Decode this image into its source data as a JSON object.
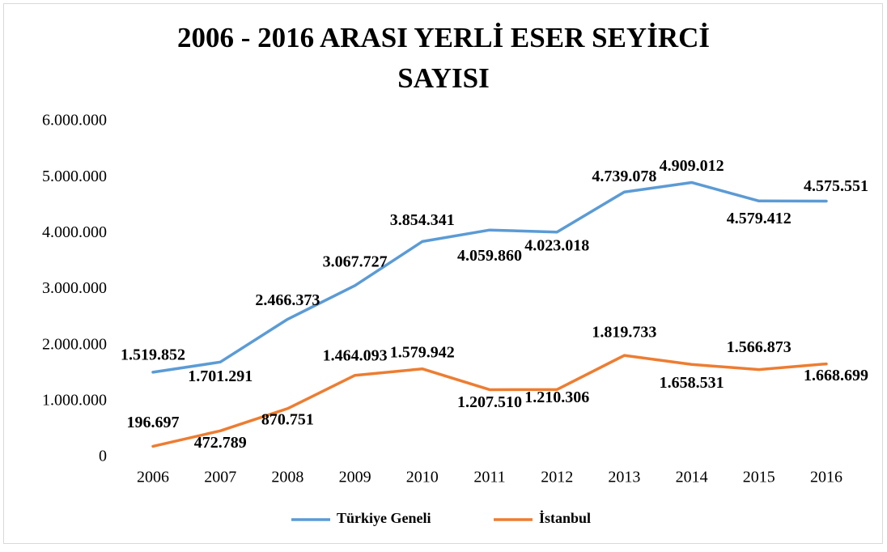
{
  "chart_data": {
    "type": "line",
    "title": "2006 - 2016 ARASI YERLİ ESER SEYİRCİ",
    "title_line2": "SAYISI",
    "categories": [
      "2006",
      "2007",
      "2008",
      "2009",
      "2010",
      "2011",
      "2012",
      "2013",
      "2014",
      "2015",
      "2016"
    ],
    "series": [
      {
        "name": "Türkiye Geneli",
        "color": "#5b9bd5",
        "values": [
          1519852,
          1701291,
          2466373,
          3067727,
          3854341,
          4059860,
          4023018,
          4739078,
          4909012,
          4579412,
          4575551
        ],
        "value_labels": [
          "1.519.852",
          "1.701.291",
          "2.466.373",
          "3.067.727",
          "3.854.341",
          "4.059.860",
          "4.023.018",
          "4.739.078",
          "4.909.012",
          "4.579.412",
          "4.575.551"
        ]
      },
      {
        "name": "İstanbul",
        "color": "#ed7d31",
        "values": [
          196697,
          472789,
          870751,
          1464093,
          1579942,
          1207510,
          1210306,
          1819733,
          1658531,
          1566873,
          1668699
        ],
        "value_labels": [
          "196.697",
          "472.789",
          "870.751",
          "1.464.093",
          "1.579.942",
          "1.207.510",
          "1.210.306",
          "1.819.733",
          "1.658.531",
          "1.566.873",
          "1.668.699"
        ]
      }
    ],
    "ylim": [
      0,
      6000000
    ],
    "yticks": [
      0,
      {
        "value": 1000000,
        "label": "1.000.000"
      },
      {
        "value": 2000000,
        "label": "2.000.000"
      },
      {
        "value": 3000000,
        "label": "3.000.000"
      },
      {
        "value": 4000000,
        "label": "4.000.000"
      },
      {
        "value": 5000000,
        "label": "5.000.000"
      },
      {
        "value": 6000000,
        "label": "6.000.000"
      }
    ],
    "grid": false,
    "legend": "bottom"
  }
}
